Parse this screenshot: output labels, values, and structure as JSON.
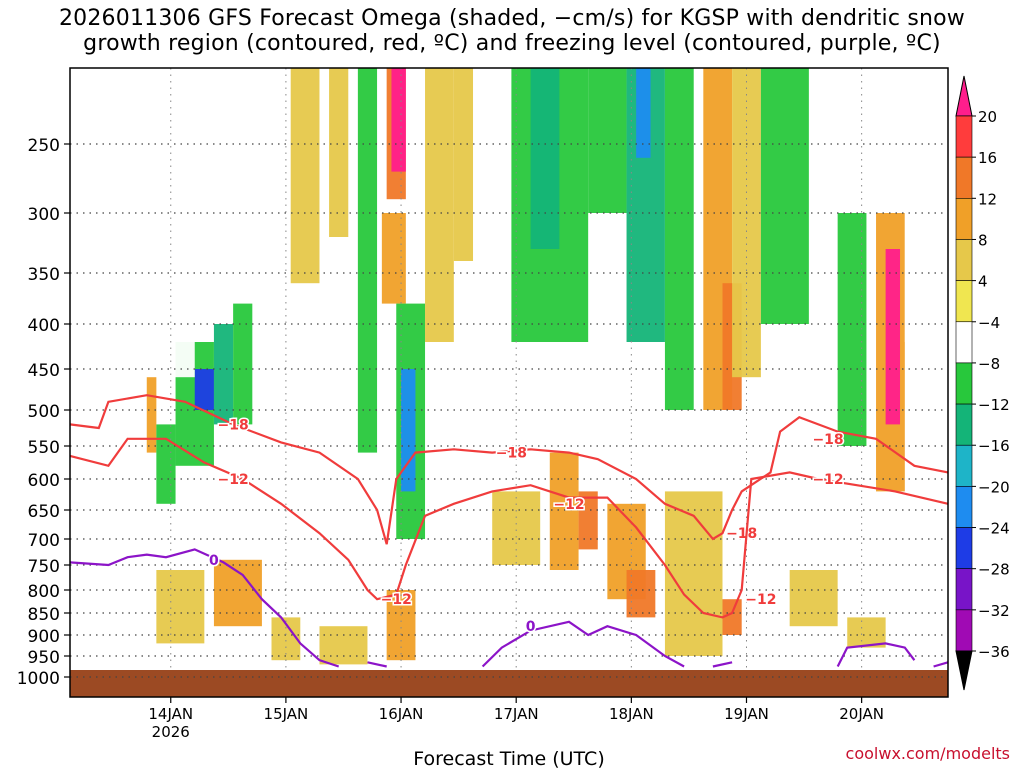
{
  "title": {
    "line1": "2026011306 GFS Forecast Omega (shaded, −cm/s) for KGSP with dendritic snow",
    "line2": "growth region (contoured, red, ºC) and freezing level (contoured, purple, ºC)"
  },
  "credit": "coolwx.com/modelts",
  "chart_data": {
    "type": "heatmap",
    "title": "2026011306 GFS Forecast Omega (shaded, −cm/s) for KGSP with dendritic snow growth region (contoured, red, ºC) and freezing level (contoured, purple, ºC)",
    "xlabel": "Forecast Time (UTC)",
    "ylabel": "",
    "x_range_hours": [
      0,
      183
    ],
    "x_ticks": [
      {
        "hour": 21,
        "label": "14JAN",
        "sublabel": "2026"
      },
      {
        "hour": 45,
        "label": "15JAN"
      },
      {
        "hour": 69,
        "label": "16JAN"
      },
      {
        "hour": 93,
        "label": "17JAN"
      },
      {
        "hour": 117,
        "label": "18JAN"
      },
      {
        "hour": 141,
        "label": "19JAN"
      },
      {
        "hour": 165,
        "label": "20JAN"
      }
    ],
    "y_ticks_hPa": [
      250,
      300,
      350,
      400,
      450,
      500,
      550,
      600,
      650,
      700,
      750,
      800,
      850,
      900,
      950,
      1000
    ],
    "y_range_hPa": [
      200,
      1000
    ],
    "surface_pressure_hPa": 975,
    "colorbar": {
      "labels": [
        "20",
        "16",
        "12",
        "8",
        "4",
        "−4",
        "−8",
        "−12",
        "−16",
        "−20",
        "−24",
        "−28",
        "−32",
        "−36"
      ],
      "colors": [
        "#ff1e8c",
        "#ff3c3c",
        "#f07828",
        "#f0a028",
        "#e6c84a",
        "#f0e650",
        "#ffffff",
        "#28c83c",
        "#14b478",
        "#1eb4c8",
        "#1e8cf0",
        "#1e3ce6",
        "#7814c8",
        "#a00ab4",
        "#b4b4b4",
        "#000000"
      ]
    },
    "omega_cells": [
      {
        "t": [
          16,
          18
        ],
        "p": [
          460,
          560
        ],
        "v": 8
      },
      {
        "t": [
          18,
          22
        ],
        "p": [
          520,
          640
        ],
        "v": -10
      },
      {
        "t": [
          22,
          30
        ],
        "p": [
          420,
          580
        ],
        "v": -12
      },
      {
        "t": [
          26,
          30
        ],
        "p": [
          450,
          500
        ],
        "v": -26
      },
      {
        "t": [
          30,
          34
        ],
        "p": [
          400,
          520
        ],
        "v": -14
      },
      {
        "t": [
          20,
          26
        ],
        "p": [
          200,
          460
        ],
        "v": -8
      },
      {
        "t": [
          34,
          38
        ],
        "p": [
          380,
          520
        ],
        "v": -10
      },
      {
        "t": [
          40,
          44
        ],
        "p": [
          300,
          560
        ],
        "v": -8
      },
      {
        "t": [
          46,
          52
        ],
        "p": [
          200,
          360
        ],
        "v": 6
      },
      {
        "t": [
          54,
          58
        ],
        "p": [
          200,
          320
        ],
        "v": 6
      },
      {
        "t": [
          60,
          64
        ],
        "p": [
          200,
          560
        ],
        "v": -10
      },
      {
        "t": [
          66,
          70
        ],
        "p": [
          200,
          290
        ],
        "v": 12
      },
      {
        "t": [
          67,
          70
        ],
        "p": [
          200,
          270
        ],
        "v": 22
      },
      {
        "t": [
          65,
          70
        ],
        "p": [
          300,
          380
        ],
        "v": 8
      },
      {
        "t": [
          68,
          74
        ],
        "p": [
          380,
          700
        ],
        "v": -12
      },
      {
        "t": [
          69,
          72
        ],
        "p": [
          450,
          620
        ],
        "v": -22
      },
      {
        "t": [
          74,
          80
        ],
        "p": [
          200,
          420
        ],
        "v": 6
      },
      {
        "t": [
          80,
          84
        ],
        "p": [
          200,
          340
        ],
        "v": 6
      },
      {
        "t": [
          92,
          108
        ],
        "p": [
          200,
          420
        ],
        "v": -10
      },
      {
        "t": [
          96,
          102
        ],
        "p": [
          200,
          330
        ],
        "v": -14
      },
      {
        "t": [
          108,
          116
        ],
        "p": [
          200,
          300
        ],
        "v": -10
      },
      {
        "t": [
          116,
          124
        ],
        "p": [
          200,
          420
        ],
        "v": -14
      },
      {
        "t": [
          118,
          121
        ],
        "p": [
          200,
          260
        ],
        "v": -22
      },
      {
        "t": [
          124,
          130
        ],
        "p": [
          200,
          500
        ],
        "v": -10
      },
      {
        "t": [
          132,
          138
        ],
        "p": [
          200,
          500
        ],
        "v": 10
      },
      {
        "t": [
          136,
          140
        ],
        "p": [
          360,
          500
        ],
        "v": 14
      },
      {
        "t": [
          138,
          144
        ],
        "p": [
          200,
          460
        ],
        "v": 6
      },
      {
        "t": [
          144,
          154
        ],
        "p": [
          200,
          400
        ],
        "v": -10
      },
      {
        "t": [
          160,
          166
        ],
        "p": [
          300,
          550
        ],
        "v": -12
      },
      {
        "t": [
          168,
          174
        ],
        "p": [
          300,
          620
        ],
        "v": 10
      },
      {
        "t": [
          170,
          173
        ],
        "p": [
          330,
          520
        ],
        "v": 22
      },
      {
        "t": [
          174,
          183
        ],
        "p": [
          200,
          420
        ],
        "v": -8
      },
      {
        "t": [
          88,
          98
        ],
        "p": [
          620,
          750
        ],
        "v": 6
      },
      {
        "t": [
          100,
          106
        ],
        "p": [
          560,
          760
        ],
        "v": 8
      },
      {
        "t": [
          106,
          110
        ],
        "p": [
          620,
          720
        ],
        "v": 12
      },
      {
        "t": [
          112,
          120
        ],
        "p": [
          640,
          820
        ],
        "v": 8
      },
      {
        "t": [
          116,
          122
        ],
        "p": [
          760,
          860
        ],
        "v": 12
      },
      {
        "t": [
          124,
          136
        ],
        "p": [
          620,
          950
        ],
        "v": 6
      },
      {
        "t": [
          136,
          140
        ],
        "p": [
          820,
          900
        ],
        "v": 14
      },
      {
        "t": [
          18,
          28
        ],
        "p": [
          760,
          920
        ],
        "v": 6
      },
      {
        "t": [
          30,
          40
        ],
        "p": [
          740,
          880
        ],
        "v": 8
      },
      {
        "t": [
          42,
          48
        ],
        "p": [
          860,
          960
        ],
        "v": 6
      },
      {
        "t": [
          52,
          62
        ],
        "p": [
          880,
          970
        ],
        "v": 6
      },
      {
        "t": [
          66,
          72
        ],
        "p": [
          800,
          960
        ],
        "v": 8
      },
      {
        "t": [
          150,
          160
        ],
        "p": [
          760,
          880
        ],
        "v": 6
      },
      {
        "t": [
          162,
          170
        ],
        "p": [
          860,
          930
        ],
        "v": 6
      },
      {
        "t": [
          176,
          183
        ],
        "p": [
          560,
          640
        ],
        "v": -8
      }
    ],
    "contours": [
      {
        "name": "dgz-minus18",
        "color": "#f03c3c",
        "label": "−18",
        "labels_at": [
          [
            34,
            520
          ],
          [
            92,
            560
          ],
          [
            140,
            690
          ],
          [
            158,
            540
          ]
        ],
        "points": [
          [
            0,
            520
          ],
          [
            6,
            525
          ],
          [
            8,
            490
          ],
          [
            16,
            482
          ],
          [
            24,
            490
          ],
          [
            34,
            520
          ],
          [
            44,
            545
          ],
          [
            52,
            560
          ],
          [
            60,
            600
          ],
          [
            64,
            650
          ],
          [
            66,
            710
          ],
          [
            68,
            600
          ],
          [
            72,
            560
          ],
          [
            80,
            555
          ],
          [
            88,
            560
          ],
          [
            96,
            555
          ],
          [
            104,
            560
          ],
          [
            110,
            570
          ],
          [
            118,
            600
          ],
          [
            124,
            640
          ],
          [
            130,
            660
          ],
          [
            134,
            700
          ],
          [
            136,
            690
          ],
          [
            138,
            650
          ],
          [
            140,
            620
          ],
          [
            146,
            590
          ],
          [
            148,
            530
          ],
          [
            152,
            510
          ],
          [
            160,
            530
          ],
          [
            168,
            540
          ],
          [
            176,
            580
          ],
          [
            183,
            590
          ]
        ]
      },
      {
        "name": "dgz-minus12",
        "color": "#f03c3c",
        "label": "−12",
        "labels_at": [
          [
            34,
            600
          ],
          [
            68,
            820
          ],
          [
            104,
            640
          ],
          [
            144,
            820
          ],
          [
            158,
            600
          ]
        ],
        "points": [
          [
            0,
            565
          ],
          [
            8,
            580
          ],
          [
            12,
            540
          ],
          [
            20,
            540
          ],
          [
            28,
            575
          ],
          [
            36,
            600
          ],
          [
            44,
            640
          ],
          [
            52,
            690
          ],
          [
            58,
            740
          ],
          [
            62,
            800
          ],
          [
            64,
            820
          ],
          [
            68,
            810
          ],
          [
            70,
            750
          ],
          [
            74,
            660
          ],
          [
            80,
            640
          ],
          [
            88,
            620
          ],
          [
            96,
            610
          ],
          [
            104,
            630
          ],
          [
            112,
            630
          ],
          [
            118,
            680
          ],
          [
            124,
            750
          ],
          [
            128,
            810
          ],
          [
            132,
            850
          ],
          [
            136,
            860
          ],
          [
            138,
            850
          ],
          [
            140,
            800
          ],
          [
            142,
            600
          ],
          [
            150,
            590
          ],
          [
            156,
            600
          ],
          [
            164,
            610
          ],
          [
            172,
            620
          ],
          [
            183,
            640
          ]
        ]
      },
      {
        "name": "freezing-0",
        "color": "#8c14c8",
        "label": "0",
        "labels_at": [
          [
            30,
            740
          ],
          [
            96,
            880
          ]
        ],
        "points": [
          [
            0,
            745
          ],
          [
            8,
            750
          ],
          [
            12,
            735
          ],
          [
            16,
            730
          ],
          [
            20,
            735
          ],
          [
            26,
            720
          ],
          [
            32,
            745
          ],
          [
            36,
            770
          ],
          [
            40,
            820
          ],
          [
            44,
            860
          ],
          [
            48,
            920
          ],
          [
            52,
            960
          ],
          [
            56,
            975
          ]
        ],
        "extra": [
          [
            [
              62,
              965
            ],
            [
              66,
              975
            ]
          ],
          [
            [
              86,
              975
            ],
            [
              90,
              930
            ],
            [
              96,
              890
            ],
            [
              104,
              870
            ],
            [
              108,
              900
            ],
            [
              112,
              880
            ],
            [
              118,
              900
            ],
            [
              124,
              950
            ],
            [
              128,
              975
            ]
          ],
          [
            [
              134,
              975
            ],
            [
              138,
              965
            ]
          ],
          [
            [
              160,
              975
            ],
            [
              162,
              930
            ],
            [
              170,
              920
            ],
            [
              174,
              930
            ],
            [
              176,
              960
            ]
          ],
          [
            [
              180,
              975
            ],
            [
              183,
              965
            ]
          ]
        ]
      }
    ]
  }
}
